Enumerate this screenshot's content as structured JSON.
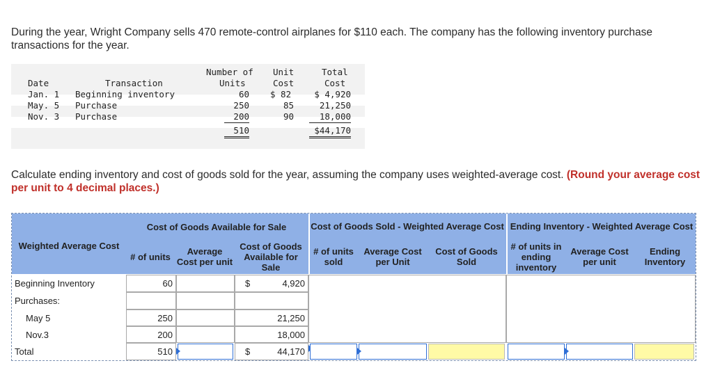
{
  "intro": "During the year, Wright Company sells 470 remote-control airplanes for $110 each. The company has the following inventory purchase transactions for the year.",
  "datatable": {
    "headers": {
      "date": "Date",
      "transaction": "Transaction",
      "units_1": "Number of",
      "units_2": "Units",
      "unitcost_1": "Unit",
      "unitcost_2": "Cost",
      "totalcost_1": "Total",
      "totalcost_2": "Cost"
    },
    "rows": [
      {
        "date": "Jan. 1",
        "transaction": "Beginning inventory",
        "units": "60",
        "unit_cost": "$ 82",
        "total_cost": "$ 4,920"
      },
      {
        "date": "May. 5",
        "transaction": "Purchase",
        "units": "250",
        "unit_cost": "85",
        "total_cost": "21,250"
      },
      {
        "date": "Nov. 3",
        "transaction": "Purchase",
        "units": "200",
        "unit_cost": "90",
        "total_cost": "18,000"
      }
    ],
    "totals": {
      "units": "510",
      "total_cost": "$44,170"
    }
  },
  "question": {
    "text": "Calculate ending inventory and cost of goods sold for the year, assuming the company uses weighted-average cost.",
    "emphasis": "(Round your average cost per unit to 4 decimal places.)"
  },
  "answer": {
    "group_headers": {
      "available": "Cost of Goods Available for Sale",
      "cogs": "Cost of Goods Sold - Weighted Average Cost",
      "ending": "Ending Inventory - Weighted Average Cost"
    },
    "row_header": "Weighted Average Cost",
    "col_headers": {
      "units": "# of units",
      "avg_cost": "Average Cost per unit",
      "cogas": "Cost of Goods Available for Sale",
      "units_sold": "# of units sold",
      "avg_cost_unit": "Average Cost per Unit",
      "cogs": "Cost of Goods Sold",
      "units_ending": "# of units in ending inventory",
      "avg_cost_per_unit": "Average Cost per unit",
      "ending_inv": "Ending Inventory"
    },
    "rows": {
      "beginning": {
        "label": "Beginning Inventory",
        "units": "60",
        "currency": "$",
        "cost": "4,920"
      },
      "purchases": {
        "label": "Purchases:"
      },
      "may": {
        "label": "May 5",
        "units": "250",
        "cost": "21,250"
      },
      "nov": {
        "label": "Nov.3",
        "units": "200",
        "cost": "18,000"
      },
      "total": {
        "label": "Total",
        "units": "510",
        "currency": "$",
        "cost": "44,170"
      }
    }
  },
  "colors": {
    "header_blue": "#8fb0e6",
    "input_border": "#2f6fd6",
    "answer_yellow": "#fffaa6",
    "emphasis_red": "#c0302a"
  }
}
